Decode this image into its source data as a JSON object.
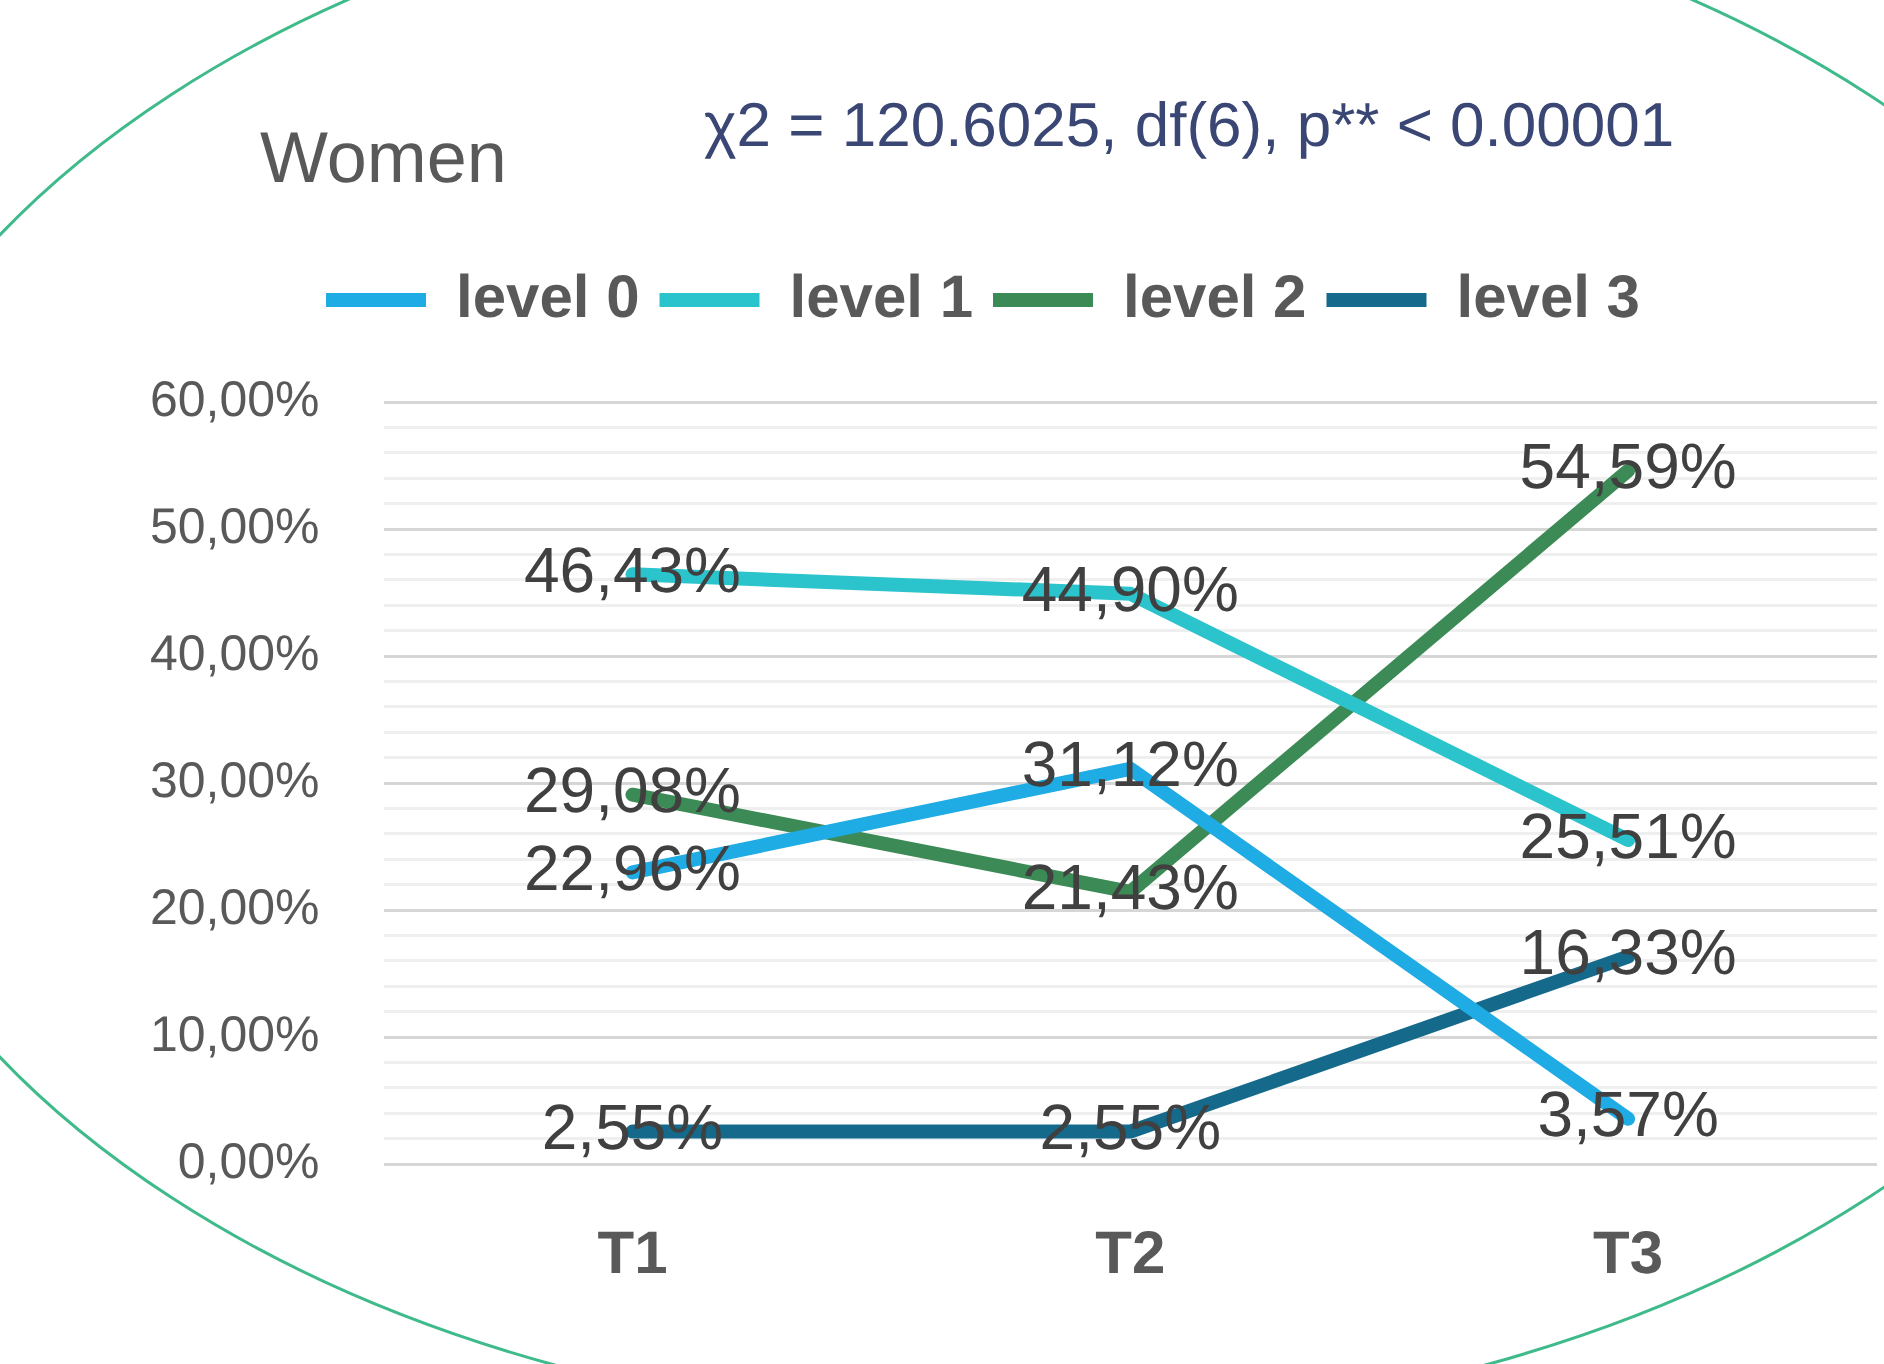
{
  "chart_data": {
    "type": "line",
    "title": "Women",
    "annotations": [
      "χ2 = 120.6025, df(6), p** < 0.00001"
    ],
    "categories": [
      "T1",
      "T2",
      "T3"
    ],
    "series": [
      {
        "name": "level 0",
        "color": "#1fabe3",
        "values": [
          22.96,
          31.12,
          3.57
        ],
        "value_labels": [
          "22,96%",
          "31,12%",
          "3,57%"
        ]
      },
      {
        "name": "level 1",
        "color": "#2bc4cc",
        "values": [
          46.43,
          44.9,
          25.51
        ],
        "value_labels": [
          "46,43%",
          "44,90%",
          "25,51%"
        ]
      },
      {
        "name": "level 2",
        "color": "#3c8a55",
        "values": [
          29.08,
          21.43,
          54.59
        ],
        "value_labels": [
          "29,08%",
          "21,43%",
          "54,59%"
        ]
      },
      {
        "name": "level 3",
        "color": "#156a8b",
        "values": [
          2.55,
          2.55,
          16.33
        ],
        "value_labels": [
          "2,55%",
          "2,55%",
          "16,33%"
        ]
      }
    ],
    "ylim": [
      0,
      60
    ],
    "yticks": [
      {
        "value": 0,
        "label": "0,00%"
      },
      {
        "value": 2,
        "label": null
      },
      {
        "value": 4,
        "label": null
      },
      {
        "value": 6,
        "label": null
      },
      {
        "value": 8,
        "label": null
      },
      {
        "value": 10,
        "label": "10,00%"
      },
      {
        "value": 12,
        "label": null
      },
      {
        "value": 14,
        "label": null
      },
      {
        "value": 16,
        "label": null
      },
      {
        "value": 18,
        "label": null
      },
      {
        "value": 20,
        "label": "20,00%"
      },
      {
        "value": 22,
        "label": null
      },
      {
        "value": 24,
        "label": null
      },
      {
        "value": 26,
        "label": null
      },
      {
        "value": 28,
        "label": null
      },
      {
        "value": 30,
        "label": "30,00%"
      },
      {
        "value": 32,
        "label": null
      },
      {
        "value": 34,
        "label": null
      },
      {
        "value": 36,
        "label": null
      },
      {
        "value": 38,
        "label": null
      },
      {
        "value": 40,
        "label": "40,00%"
      },
      {
        "value": 42,
        "label": null
      },
      {
        "value": 44,
        "label": null
      },
      {
        "value": 46,
        "label": null
      },
      {
        "value": 48,
        "label": null
      },
      {
        "value": 50,
        "label": "50,00%"
      },
      {
        "value": 52,
        "label": null
      },
      {
        "value": 54,
        "label": null
      },
      {
        "value": 56,
        "label": null
      },
      {
        "value": 58,
        "label": null
      },
      {
        "value": 60,
        "label": "60,00%"
      }
    ],
    "grid": "y",
    "legend": "top",
    "marker": "none",
    "line_style": "solid"
  }
}
